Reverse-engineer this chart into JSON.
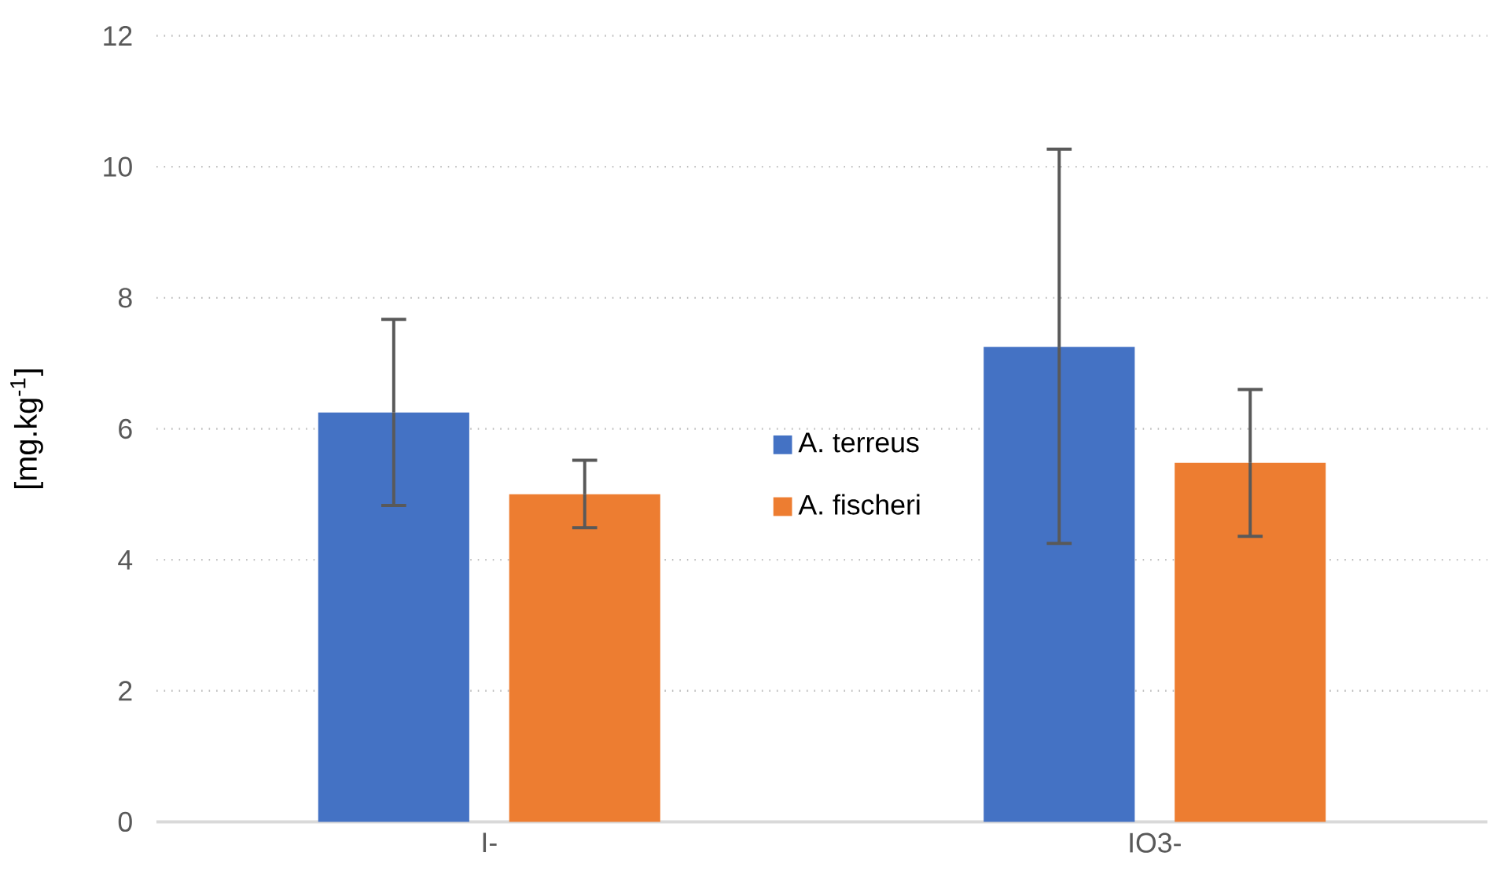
{
  "chart_data": {
    "type": "bar",
    "ylabel": "[mg.kg$^{-1}$]",
    "categories": [
      "I-",
      "IO3-"
    ],
    "series": [
      {
        "name": "A. terreus",
        "color": "#4472c4",
        "values": [
          6.25,
          7.25
        ],
        "errors": [
          [
            4.83,
            7.67
          ],
          [
            4.25,
            10.27
          ]
        ]
      },
      {
        "name": "A. fischeri",
        "color": "#ed7d31",
        "values": [
          5.0,
          5.48
        ],
        "errors": [
          [
            4.49,
            5.52
          ],
          [
            4.36,
            6.6
          ]
        ]
      }
    ],
    "ylim": [
      0,
      12
    ],
    "yticks": [
      0,
      2,
      4,
      6,
      8,
      10,
      12
    ],
    "grid": "y",
    "legend": "center"
  }
}
